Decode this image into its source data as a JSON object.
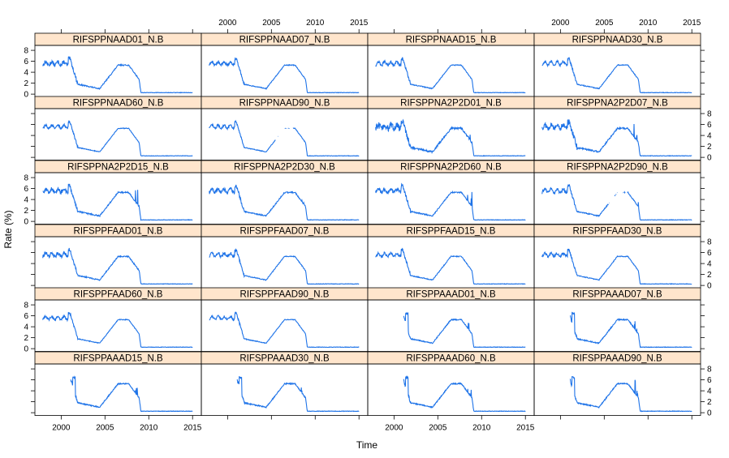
{
  "chart_data": {
    "type": "line",
    "xlabel": "Time",
    "ylabel": "Rate (%)",
    "xlim": [
      1997,
      2016
    ],
    "ylim": [
      -0.5,
      8.9
    ],
    "x_ticks": [
      2000,
      2005,
      2010,
      2015
    ],
    "y_ticks": [
      0,
      2,
      4,
      6,
      8
    ],
    "strip_color": "#ffe5cc",
    "line_color": "#1e73e8",
    "panels": [
      {
        "name": "RIFSPPNAAD01_N.B",
        "start": 1997.9,
        "noise": 0.35,
        "spike": 0,
        "gaps": false
      },
      {
        "name": "RIFSPPNAAD07_N.B",
        "start": 1997.9,
        "noise": 0.25,
        "spike": 0,
        "gaps": false
      },
      {
        "name": "RIFSPPNAAD15_N.B",
        "start": 1997.9,
        "noise": 0.25,
        "spike": 0,
        "gaps": false
      },
      {
        "name": "RIFSPPNAAD30_N.B",
        "start": 1997.9,
        "noise": 0.25,
        "spike": 0,
        "gaps": false
      },
      {
        "name": "RIFSPPNAAD60_N.B",
        "start": 1997.9,
        "noise": 0.2,
        "spike": 0,
        "gaps": false
      },
      {
        "name": "RIFSPPNAAD90_N.B",
        "start": 1997.9,
        "noise": 0.2,
        "spike": 0,
        "gaps": true
      },
      {
        "name": "RIFSPPNA2P2D01_N.B",
        "start": 1997.9,
        "noise": 0.6,
        "spike": 3.5,
        "gaps": false
      },
      {
        "name": "RIFSPPNA2P2D07_N.B",
        "start": 1997.9,
        "noise": 0.5,
        "spike": 3.5,
        "gaps": false
      },
      {
        "name": "RIFSPPNA2P2D15_N.B",
        "start": 1997.9,
        "noise": 0.4,
        "spike": 3,
        "gaps": false
      },
      {
        "name": "RIFSPPNA2P2D30_N.B",
        "start": 1997.9,
        "noise": 0.35,
        "spike": 3,
        "gaps": false
      },
      {
        "name": "RIFSPPNA2P2D60_N.B",
        "start": 1997.9,
        "noise": 0.35,
        "spike": 3,
        "gaps": false
      },
      {
        "name": "RIFSPPNA2P2D90_N.B",
        "start": 1997.9,
        "noise": 0.3,
        "spike": 2.5,
        "gaps": true
      },
      {
        "name": "RIFSPPFAAD01_N.B",
        "start": 1997.9,
        "noise": 0.35,
        "spike": 0,
        "gaps": false
      },
      {
        "name": "RIFSPPFAAD07_N.B",
        "start": 1997.9,
        "noise": 0.25,
        "spike": 0,
        "gaps": false
      },
      {
        "name": "RIFSPPFAAD15_N.B",
        "start": 1997.9,
        "noise": 0.25,
        "spike": 0,
        "gaps": false
      },
      {
        "name": "RIFSPPFAAD30_N.B",
        "start": 1997.9,
        "noise": 0.25,
        "spike": 0,
        "gaps": false
      },
      {
        "name": "RIFSPPFAAD60_N.B",
        "start": 1997.9,
        "noise": 0.2,
        "spike": 0,
        "gaps": false
      },
      {
        "name": "RIFSPPFAAD90_N.B",
        "start": 1997.9,
        "noise": 0.2,
        "spike": 0,
        "gaps": false
      },
      {
        "name": "RIFSPPAAAD01_N.B",
        "start": 2001.1,
        "noise": 0.3,
        "spike": 1.5,
        "gaps": false
      },
      {
        "name": "RIFSPPAAAD07_N.B",
        "start": 2001.1,
        "noise": 0.3,
        "spike": 1.5,
        "gaps": false
      },
      {
        "name": "RIFSPPAAAD15_N.B",
        "start": 2001.1,
        "noise": 0.3,
        "spike": 1.5,
        "gaps": false
      },
      {
        "name": "RIFSPPAAAD30_N.B",
        "start": 2001.1,
        "noise": 0.3,
        "spike": 1.5,
        "gaps": false
      },
      {
        "name": "RIFSPPAAAD60_N.B",
        "start": 2001.1,
        "noise": 0.3,
        "spike": 1.5,
        "gaps": false
      },
      {
        "name": "RIFSPPAAAD90_N.B",
        "start": 2001.1,
        "noise": 0.3,
        "spike": 2.5,
        "gaps": false
      }
    ]
  }
}
